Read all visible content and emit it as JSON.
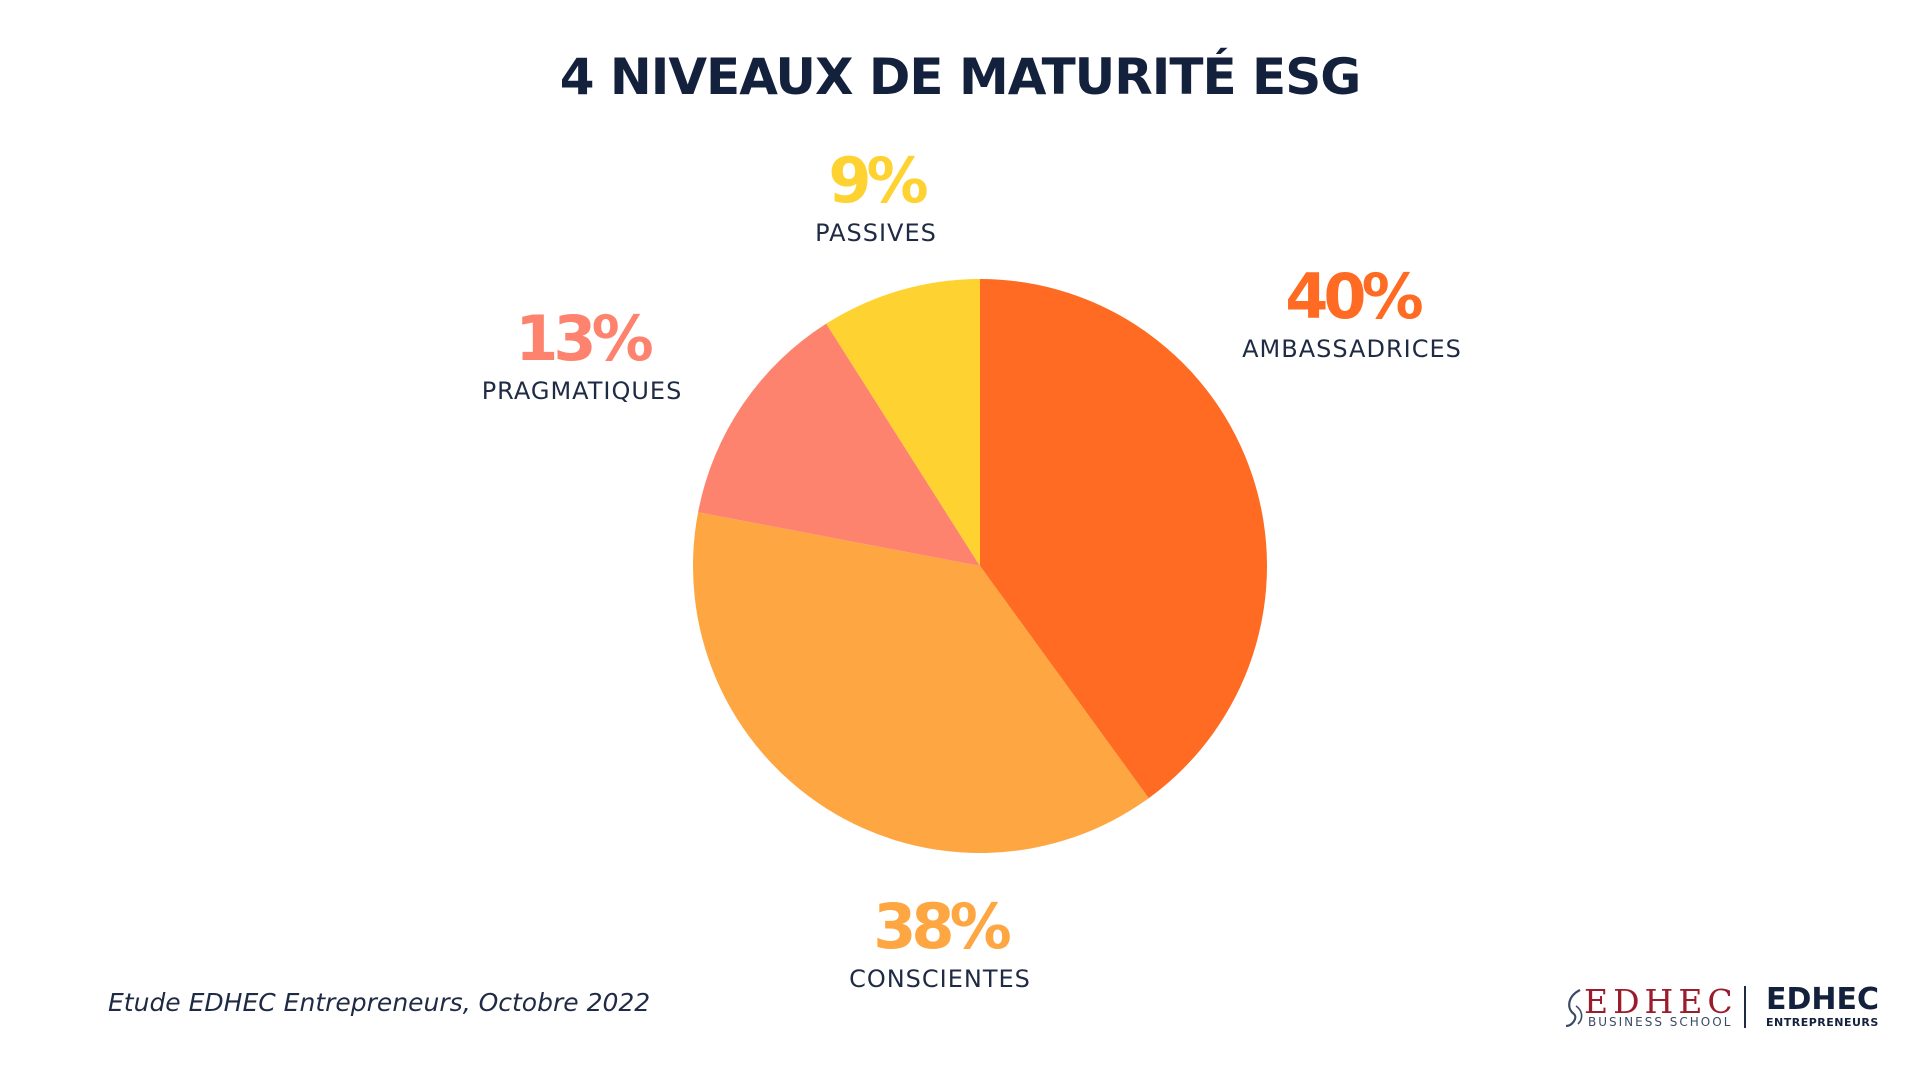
{
  "slide": {
    "title": "4 NIVEAUX DE MATURITÉ ESG",
    "source": "Etude EDHEC Entrepreneurs, Octobre 2022"
  },
  "logos": {
    "business_school": {
      "word": "EDHEC",
      "sub": "BUSINESS SCHOOL"
    },
    "entrepreneurs": {
      "word": "EDHEC",
      "sub": "ENTREPRENEURS"
    }
  },
  "chart_data": {
    "type": "pie",
    "title": "4 NIVEAUX DE MATURITÉ ESG",
    "start_angle_deg": 0,
    "direction": "clockwise",
    "slices": [
      {
        "label": "AMBASSADRICES",
        "value": 40,
        "display": "40%",
        "color": "#ff6b22"
      },
      {
        "label": "CONSCIENTES",
        "value": 38,
        "display": "38%",
        "color": "#fea742"
      },
      {
        "label": "PRAGMATIQUES",
        "value": 13,
        "display": "13%",
        "color": "#fe836e"
      },
      {
        "label": "PASSIVES",
        "value": 9,
        "display": "9%",
        "color": "#fed230"
      }
    ]
  }
}
